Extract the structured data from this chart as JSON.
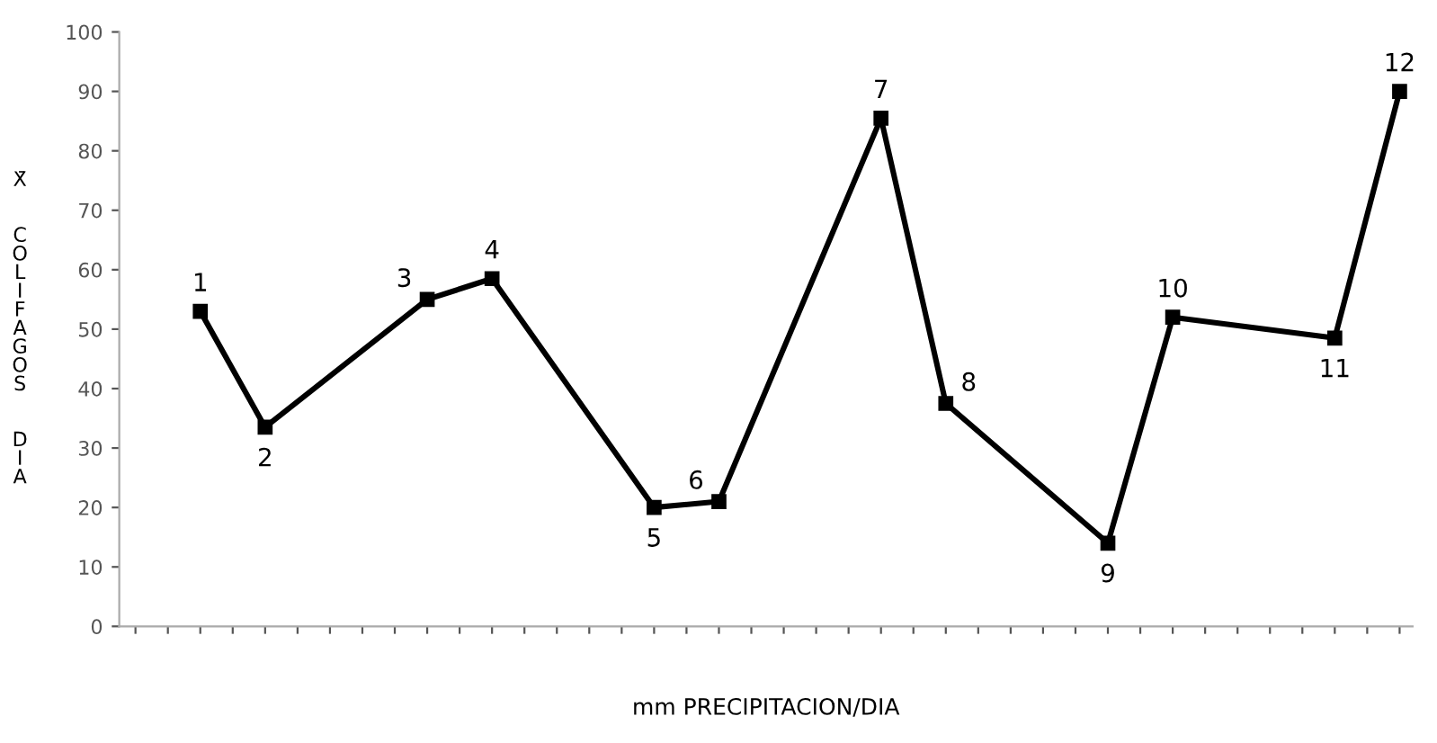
{
  "chart_data": {
    "type": "line",
    "xlabel": "mm PRECIPITACION/DIA",
    "ylabel": "X̄  COLIFAGOS  DIA",
    "categories": [
      null,
      null,
      null,
      null,
      null,
      null,
      null,
      null,
      null,
      null,
      null,
      null,
      null,
      null,
      null,
      null,
      null,
      null,
      null,
      null,
      null,
      null,
      null,
      null,
      null,
      null,
      null,
      null,
      null,
      null,
      null,
      null,
      null,
      null,
      null,
      null,
      null,
      null,
      null,
      null
    ],
    "series": [
      {
        "color": "#000000",
        "values": [
          null,
          null,
          53,
          null,
          33.5,
          null,
          null,
          null,
          null,
          55,
          null,
          58.5,
          null,
          null,
          null,
          null,
          20,
          null,
          21,
          null,
          null,
          null,
          null,
          85.5,
          null,
          37.5,
          null,
          null,
          null,
          null,
          14,
          null,
          52,
          null,
          null,
          null,
          null,
          48.5,
          null,
          90
        ]
      }
    ],
    "annotations": [
      "1",
      "2",
      "3",
      "4",
      "5",
      "6",
      "7",
      "8",
      "9",
      "10",
      "11",
      "12"
    ],
    "ylim": [
      0,
      100
    ],
    "yticks": [
      0,
      10,
      20,
      30,
      40,
      50,
      60,
      70,
      80,
      90,
      100
    ],
    "grid": false,
    "legend": false,
    "marker": "square",
    "line_style": "solid"
  }
}
